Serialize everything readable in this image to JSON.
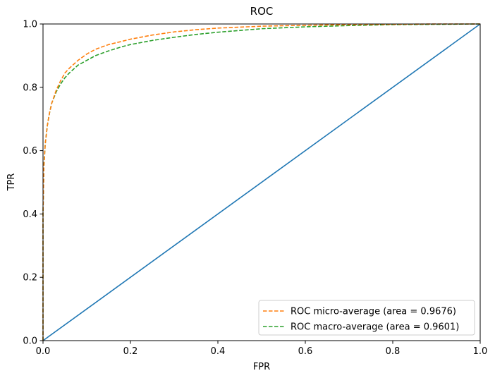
{
  "chart_data": {
    "type": "line",
    "title": "ROC",
    "xlabel": "FPR",
    "ylabel": "TPR",
    "xlim": [
      0.0,
      1.0
    ],
    "ylim": [
      0.0,
      1.0
    ],
    "xticks": [
      "0.0",
      "0.2",
      "0.4",
      "0.6",
      "0.8",
      "1.0"
    ],
    "yticks": [
      "0.0",
      "0.2",
      "0.4",
      "0.6",
      "0.8",
      "1.0"
    ],
    "grid": false,
    "legend_position": "lower right",
    "series": [
      {
        "name": "ROC micro-average (area = 0.9676)",
        "style": "dashed",
        "color": "#ff7f0e",
        "in_legend": true,
        "x": [
          0.0,
          0.0,
          0.002,
          0.005,
          0.01,
          0.015,
          0.02,
          0.03,
          0.04,
          0.05,
          0.06,
          0.08,
          0.1,
          0.12,
          0.15,
          0.18,
          0.2,
          0.25,
          0.3,
          0.35,
          0.4,
          0.5,
          0.6,
          0.7,
          0.8,
          0.9,
          1.0
        ],
        "y": [
          0.0,
          0.4,
          0.55,
          0.62,
          0.68,
          0.72,
          0.75,
          0.79,
          0.82,
          0.845,
          0.86,
          0.885,
          0.905,
          0.92,
          0.935,
          0.945,
          0.952,
          0.965,
          0.975,
          0.982,
          0.987,
          0.993,
          0.996,
          0.998,
          0.999,
          1.0,
          1.0
        ]
      },
      {
        "name": "ROC macro-average (area = 0.9601)",
        "style": "dashed",
        "color": "#2ca02c",
        "in_legend": true,
        "x": [
          0.0,
          0.0,
          0.002,
          0.005,
          0.01,
          0.015,
          0.02,
          0.03,
          0.04,
          0.05,
          0.06,
          0.08,
          0.1,
          0.12,
          0.15,
          0.18,
          0.2,
          0.25,
          0.3,
          0.35,
          0.4,
          0.5,
          0.6,
          0.7,
          0.8,
          0.9,
          1.0
        ],
        "y": [
          0.0,
          0.4,
          0.55,
          0.62,
          0.68,
          0.72,
          0.75,
          0.785,
          0.81,
          0.83,
          0.845,
          0.87,
          0.885,
          0.9,
          0.915,
          0.928,
          0.935,
          0.948,
          0.958,
          0.967,
          0.974,
          0.985,
          0.991,
          0.995,
          0.998,
          0.999,
          1.0
        ]
      },
      {
        "name": "",
        "style": "solid",
        "color": "#1f77b4",
        "in_legend": false,
        "x": [
          0.0,
          1.0
        ],
        "y": [
          0.0,
          1.0
        ]
      }
    ]
  }
}
